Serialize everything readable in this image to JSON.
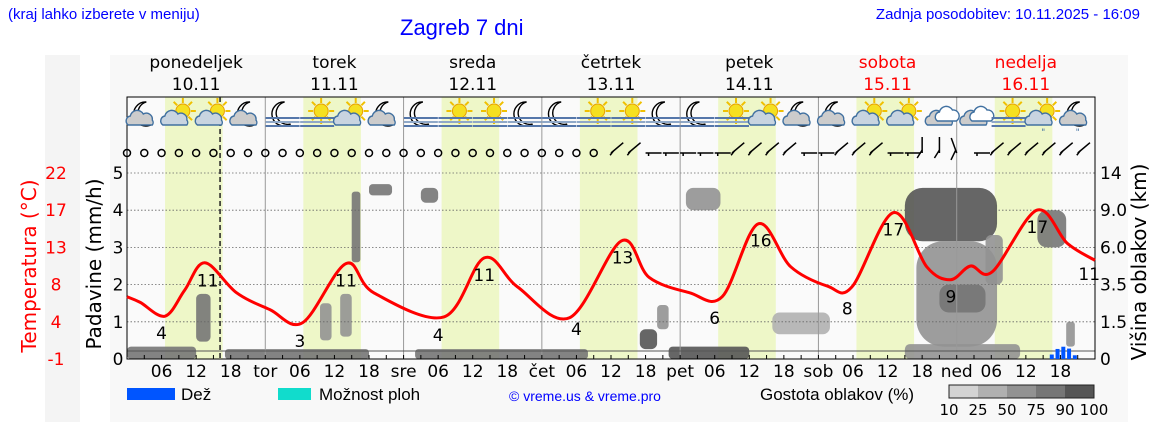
{
  "header": {
    "hint": "(kraj lahko izberete v meniju)",
    "title": "Zagreb 7 dni",
    "updated": "Zadnja posodobitev: 10.11.2025 - 16:09"
  },
  "chart_data": {
    "type": "line",
    "title": "Zagreb 7 dni",
    "days": [
      {
        "name": "ponedeljek",
        "date": "10.11",
        "abbr": "",
        "weekend": false
      },
      {
        "name": "torek",
        "date": "11.11",
        "abbr": "tor",
        "weekend": false
      },
      {
        "name": "sreda",
        "date": "12.11",
        "abbr": "sre",
        "weekend": false
      },
      {
        "name": "četrtek",
        "date": "13.11",
        "abbr": "čet",
        "weekend": false
      },
      {
        "name": "petek",
        "date": "14.11",
        "abbr": "pet",
        "weekend": false
      },
      {
        "name": "sobota",
        "date": "15.11",
        "abbr": "sob",
        "weekend": true
      },
      {
        "name": "nedelja",
        "date": "16.11",
        "abbr": "ned",
        "weekend": true
      }
    ],
    "hour_ticks": [
      "06",
      "12",
      "18"
    ],
    "daylight_hours": [
      6.6,
      16.6
    ],
    "current_time_hour": 16.15,
    "axes": {
      "left_outer": {
        "label": "Temperatura (°C)",
        "ticks": [
          "22",
          "17",
          "13",
          "8",
          "4",
          "-1"
        ],
        "range": [
          -1,
          22
        ]
      },
      "left_inner": {
        "label": "Padavine (mm/h)",
        "ticks": [
          "0",
          "1",
          "2",
          "3",
          "4",
          "5"
        ],
        "range": [
          0,
          5
        ]
      },
      "right": {
        "label": "Višina oblakov (km)",
        "ticks": [
          "0",
          "1.5",
          "3.5",
          "6.0",
          "9.0",
          "14"
        ]
      }
    },
    "grid": true,
    "temperature": [
      [
        0,
        6.7
      ],
      [
        2.3,
        6.0
      ],
      [
        6.6,
        4.3
      ],
      [
        10,
        7.5
      ],
      [
        13.5,
        10.9
      ],
      [
        19,
        7.2
      ],
      [
        24.8,
        5.1
      ],
      [
        30.5,
        3.5
      ],
      [
        38,
        10.8
      ],
      [
        42.8,
        7.2
      ],
      [
        55,
        4.2
      ],
      [
        62,
        11.5
      ],
      [
        67.8,
        7.9
      ],
      [
        76.8,
        4.1
      ],
      [
        85.8,
        13.6
      ],
      [
        90.6,
        9.1
      ],
      [
        97.6,
        7.2
      ],
      [
        103.3,
        6.7
      ],
      [
        109.5,
        15.7
      ],
      [
        115.2,
        10.4
      ],
      [
        121.6,
        8.0
      ],
      [
        125.8,
        7.9
      ],
      [
        133,
        17.1
      ],
      [
        138.8,
        10.4
      ],
      [
        142.9,
        8.8
      ],
      [
        146.4,
        10.5
      ],
      [
        150.2,
        9.8
      ],
      [
        157.9,
        17.4
      ],
      [
        163.2,
        13.3
      ],
      [
        168,
        11.2
      ]
    ],
    "temperature_labels": [
      {
        "hour": 6,
        "value": "4"
      },
      {
        "hour": 14,
        "value": "11"
      },
      {
        "hour": 30,
        "value": "3"
      },
      {
        "hour": 38,
        "value": "11"
      },
      {
        "hour": 54,
        "value": "4"
      },
      {
        "hour": 62,
        "value": "11"
      },
      {
        "hour": 78,
        "value": "4"
      },
      {
        "hour": 86,
        "value": "13"
      },
      {
        "hour": 102,
        "value": "6"
      },
      {
        "hour": 110,
        "value": "16"
      },
      {
        "hour": 125,
        "value": "8"
      },
      {
        "hour": 133,
        "value": "17"
      },
      {
        "hour": 143,
        "value": "9"
      },
      {
        "hour": 158,
        "value": "17"
      },
      {
        "hour": 167,
        "value": "11"
      }
    ],
    "precipitation": [
      {
        "hour": 160.5,
        "mm": 0.12
      },
      {
        "hour": 161.5,
        "mm": 0.27
      },
      {
        "hour": 162.5,
        "mm": 0.33
      },
      {
        "hour": 163.5,
        "mm": 0.28
      },
      {
        "hour": 164.5,
        "mm": 0.1
      }
    ],
    "clouds": [
      {
        "h": [
          0,
          12
        ],
        "km": [
          0,
          0.5
        ],
        "density": 75
      },
      {
        "h": [
          12,
          14.5
        ],
        "km": [
          0.7,
          3.0
        ],
        "density": 75
      },
      {
        "h": [
          17,
          42
        ],
        "km": [
          0,
          0.4
        ],
        "density": 75
      },
      {
        "h": [
          33.5,
          35.5
        ],
        "km": [
          0.75,
          2.5
        ],
        "density": 50
      },
      {
        "h": [
          37,
          39
        ],
        "km": [
          0.9,
          3.0
        ],
        "density": 50
      },
      {
        "h": [
          39,
          40.5
        ],
        "km": [
          5.0,
          11.5
        ],
        "density": 75
      },
      {
        "h": [
          42,
          46
        ],
        "km": [
          11,
          12.5
        ],
        "density": 75
      },
      {
        "h": [
          51,
          54
        ],
        "km": [
          10,
          12
        ],
        "density": 75
      },
      {
        "h": [
          50,
          80
        ],
        "km": [
          0,
          0.4
        ],
        "density": 75
      },
      {
        "h": [
          89,
          92
        ],
        "km": [
          0.4,
          1.2
        ],
        "density": 90
      },
      {
        "h": [
          92,
          94
        ],
        "km": [
          1.2,
          2.4
        ],
        "density": 50
      },
      {
        "h": [
          94,
          108
        ],
        "km": [
          0,
          0.5
        ],
        "density": 90
      },
      {
        "h": [
          97,
          103
        ],
        "km": [
          9,
          12
        ],
        "density": 50
      },
      {
        "h": [
          112,
          122
        ],
        "km": [
          1.0,
          2.0
        ],
        "density": 25
      },
      {
        "h": [
          135,
          151
        ],
        "km": [
          6.5,
          12
        ],
        "density": 90
      },
      {
        "h": [
          137,
          151
        ],
        "km": [
          0.5,
          6.5
        ],
        "density": 50
      },
      {
        "h": [
          141,
          149
        ],
        "km": [
          2.0,
          3.5
        ],
        "density": 75
      },
      {
        "h": [
          149,
          152
        ],
        "km": [
          3.5,
          7.0
        ],
        "density": 50
      },
      {
        "h": [
          135,
          155
        ],
        "km": [
          0,
          0.6
        ],
        "density": 50
      },
      {
        "h": [
          158,
          163
        ],
        "km": [
          6.0,
          9.0
        ],
        "density": 75
      },
      {
        "h": [
          163,
          164.5
        ],
        "km": [
          0.5,
          1.5
        ],
        "density": 50
      }
    ],
    "weather_icons": [
      "moon-cloud",
      "sun-cloud",
      "sun-cloud",
      "moon-cloud",
      "moon-fog",
      "sun-fog",
      "sun-cloud",
      "moon-cloud",
      "moon-fog",
      "sun-fog",
      "sun-fog",
      "moon-fog",
      "moon-fog",
      "sun-fog",
      "sun-fog",
      "moon-fog",
      "moon-fog",
      "sun-fog",
      "sun-cloud",
      "moon-cloud",
      "moon-cloud",
      "sun-cloud",
      "sun-cloud",
      "cloud",
      "cloud",
      "sun-fog",
      "sun-cloud-rain",
      "moon-cloud-rain"
    ],
    "wind": [
      "calm",
      "calm",
      "calm",
      "calm",
      "calm",
      "calm",
      "calm",
      "calm",
      "calm",
      "calm",
      "calm",
      "calm",
      "calm",
      "calm",
      "calm",
      "calm",
      "calm",
      "calm",
      "calm",
      "calm",
      "calm",
      "calm",
      "calm",
      "calm",
      "calm",
      "calm",
      "calm",
      "calm",
      "SW",
      "SW",
      "E",
      "E",
      "E",
      "E",
      "E",
      "SW",
      "SW",
      "SW",
      "SW",
      "E",
      "E",
      "SW",
      "SW",
      "SW",
      "E",
      "E",
      "N",
      "N",
      "NNW",
      "E",
      "SW",
      "SW",
      "SW",
      "SW",
      "SW",
      "SW"
    ],
    "legend": {
      "rain": "Dež",
      "rain_color": "#0055ff",
      "showers": "Možnost ploh",
      "showers_color": "#11dccc",
      "copyright": "© vreme.us & vreme.pro",
      "cloud_density": "Gostota oblakov (%)",
      "density_levels": [
        "10",
        "25",
        "50",
        "75",
        "90",
        "100"
      ],
      "density_colors": [
        "#d3d3d3",
        "#b0b0b0",
        "#929292",
        "#767676",
        "#555555"
      ]
    },
    "colors": {
      "temperature": "#ff0000",
      "daylight": "#eef7c8",
      "weekend": "#ff0000"
    }
  }
}
